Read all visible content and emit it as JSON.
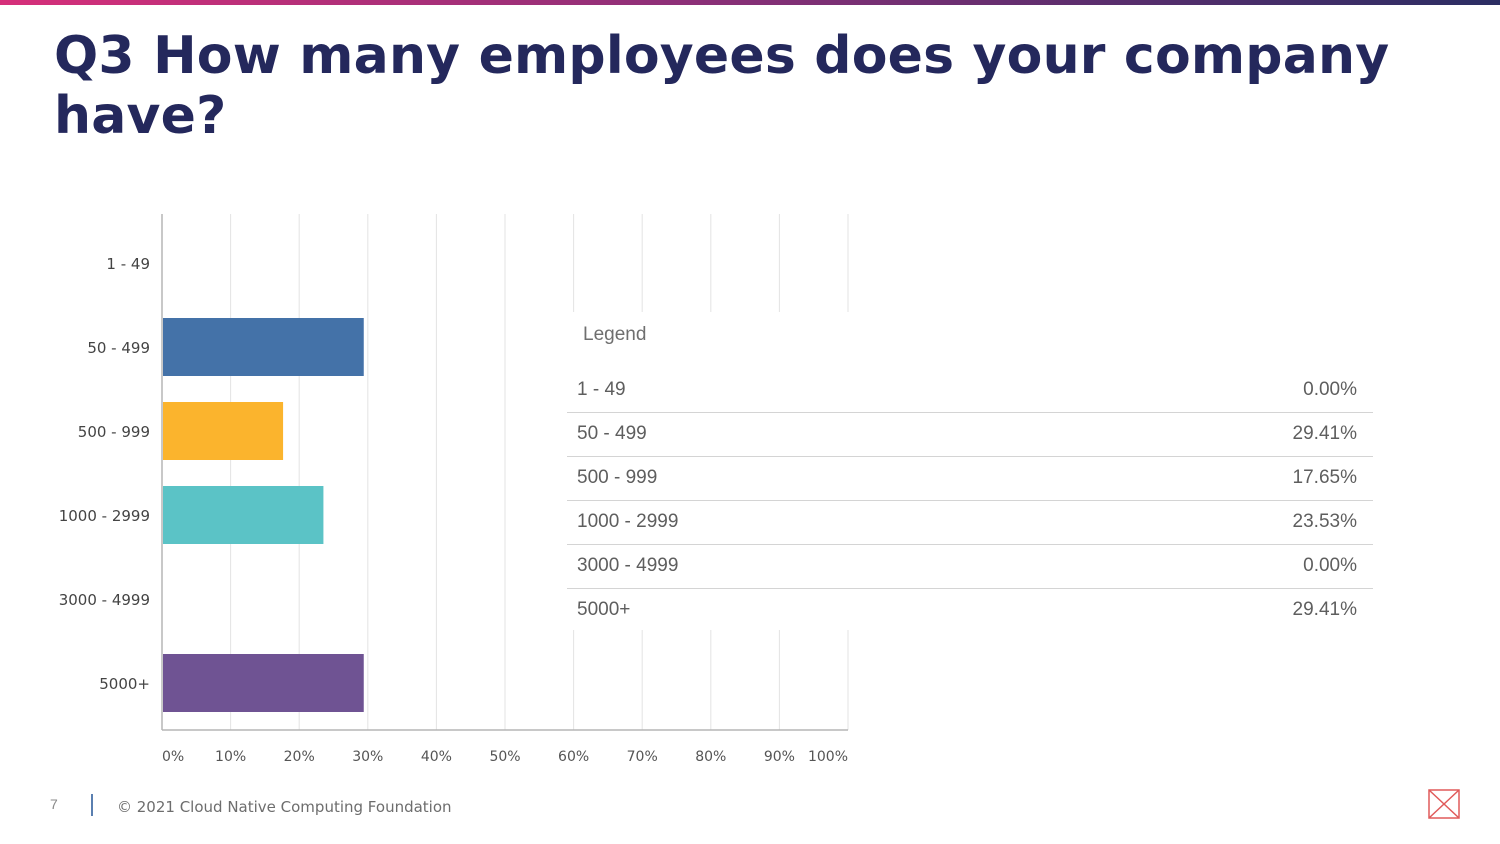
{
  "title": "Q3 How many employees does your company have?",
  "footer": {
    "page_number": "7",
    "copyright": "© 2021 Cloud Native Computing Foundation"
  },
  "chart_data": {
    "type": "bar",
    "orientation": "horizontal",
    "categories": [
      "1 - 49",
      "50 - 499",
      "500 - 999",
      "1000 - 2999",
      "3000 - 4999",
      "5000+"
    ],
    "values": [
      0.0,
      29.41,
      17.65,
      23.53,
      0.0,
      29.41
    ],
    "colors": [
      "#4472a8",
      "#4472a8",
      "#fbb42d",
      "#5bc3c6",
      "#6f5393",
      "#6f5393"
    ],
    "xlim": [
      0,
      100
    ],
    "xticks": [
      "0%",
      "10%",
      "20%",
      "30%",
      "40%",
      "50%",
      "60%",
      "70%",
      "80%",
      "90%",
      "100%"
    ],
    "grid": true,
    "legend": {
      "title": "Legend",
      "placement": "right",
      "rows": [
        {
          "label": "1 - 49",
          "value": "0.00%"
        },
        {
          "label": "50 - 499",
          "value": "29.41%"
        },
        {
          "label": "500 - 999",
          "value": "17.65%"
        },
        {
          "label": "1000 - 2999",
          "value": "23.53%"
        },
        {
          "label": "3000 - 4999",
          "value": "0.00%"
        },
        {
          "label": "5000+",
          "value": "29.41%"
        }
      ]
    }
  }
}
